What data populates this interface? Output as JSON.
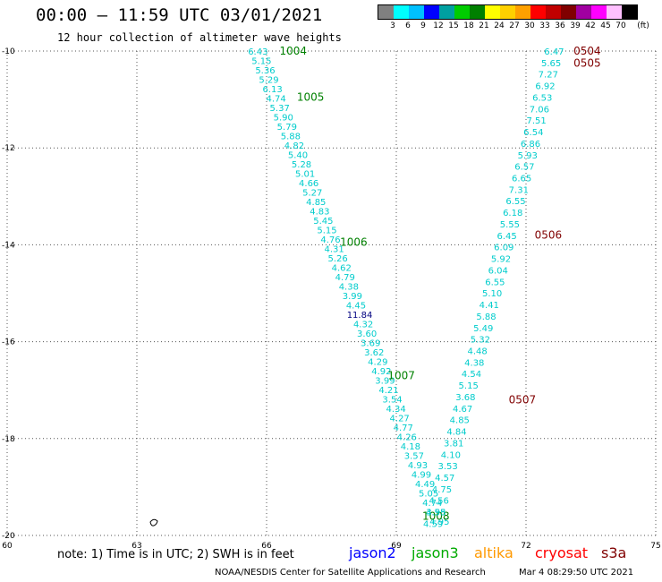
{
  "header": {
    "title": "00:00 – 11:59 UTC 03/01/2021",
    "subtitle": "12 hour collection of altimeter wave heights"
  },
  "legend": {
    "unit": "(ft)",
    "labels": [
      "3",
      "6",
      "9",
      "12",
      "15",
      "18",
      "21",
      "24",
      "27",
      "30",
      "33",
      "36",
      "39",
      "42",
      "45",
      "70"
    ],
    "colors": [
      "#808080",
      "#00ffff",
      "#00c0ff",
      "#0000ff",
      "#00a0a0",
      "#00cc00",
      "#008000",
      "#ffff00",
      "#ffd000",
      "#ffa000",
      "#ff0000",
      "#c00000",
      "#800000",
      "#a000a0",
      "#ff00ff",
      "#ffc0ff",
      "#000000"
    ]
  },
  "map": {
    "lon_range": [
      60,
      75
    ],
    "lat_range": [
      -20,
      -10
    ],
    "x_ticks": [
      "60",
      "63",
      "66",
      "69",
      "72",
      "75"
    ],
    "y_ticks": [
      "-10",
      "-12",
      "-14",
      "-16",
      "-18",
      "-20"
    ],
    "grid": "dotted"
  },
  "tracks": [
    {
      "satellite": "jason3",
      "color": "#00cccc",
      "values": [
        "6.43",
        "5.15",
        "5.36",
        "5.29",
        "6.13",
        "4.74",
        "5.37",
        "5.90",
        "5.79",
        "5.88",
        "4.82",
        "5.40",
        "5.28",
        "5.01",
        "4.66",
        "5.27",
        "4.85",
        "4.83",
        "5.45",
        "5.15",
        "4.76",
        "4.31",
        "5.26",
        "4.62",
        "4.79",
        "4.38",
        "3.99",
        "4.45",
        "11.84",
        "4.32",
        "3.60",
        "3.69",
        "3.62",
        "4.29",
        "4.92",
        "3.99",
        "4.21",
        "3.54",
        "4.34",
        "4.27",
        "4.77",
        "4.26",
        "4.18",
        "3.57",
        "4.93",
        "4.99",
        "4.49",
        "5.05",
        "4.74",
        "4.58",
        "4.95"
      ],
      "highlight": {
        "value": "11.84",
        "color": "#000080"
      },
      "start": {
        "lon": 65.8,
        "lat": -10.0
      },
      "end": {
        "lon": 70.0,
        "lat": -19.7
      },
      "time_labels": [
        {
          "text": "1004",
          "lon": 66.3,
          "lat": -10.0
        },
        {
          "text": "1005",
          "lon": 66.7,
          "lat": -10.95
        },
        {
          "text": "1006",
          "lon": 67.7,
          "lat": -13.95
        },
        {
          "text": "1007",
          "lon": 68.8,
          "lat": -16.7
        },
        {
          "text": "1008",
          "lon": 69.6,
          "lat": -19.6
        }
      ]
    },
    {
      "satellite": "s3a",
      "color": "#00cccc",
      "values": [
        "6.47",
        "5.65",
        "7.27",
        "6.92",
        "6.53",
        "7.06",
        "7.51",
        "6.54",
        "6.86",
        "5.93",
        "6.57",
        "6.65",
        "7.31",
        "6.55",
        "6.18",
        "5.55",
        "6.45",
        "6.09",
        "5.92",
        "6.04",
        "6.55",
        "5.10",
        "4.41",
        "5.88",
        "5.49",
        "5.32",
        "4.48",
        "4.38",
        "4.54",
        "5.15",
        "3.68",
        "4.67",
        "4.85",
        "4.84",
        "3.81",
        "4.10",
        "3.53",
        "4.57",
        "4.75",
        "4.56",
        "3.95",
        "4.59"
      ],
      "start": {
        "lon": 72.65,
        "lat": -10.0
      },
      "end": {
        "lon": 69.85,
        "lat": -19.75
      },
      "time_labels": [
        {
          "text": "0504",
          "lon": 73.1,
          "lat": -10.0
        },
        {
          "text": "0505",
          "lon": 73.1,
          "lat": -10.25
        },
        {
          "text": "0506",
          "lon": 72.2,
          "lat": -13.8
        },
        {
          "text": "0507",
          "lon": 71.6,
          "lat": -17.2
        }
      ]
    }
  ],
  "bottom": {
    "note": "note: 1) Time is in UTC; 2) SWH is in feet",
    "satellites": [
      {
        "name": "jason2",
        "color": "#0000ff"
      },
      {
        "name": "jason3",
        "color": "#00aa00"
      },
      {
        "name": "altika",
        "color": "#ff9900"
      },
      {
        "name": "cryosat",
        "color": "#ff0000"
      },
      {
        "name": "s3a",
        "color": "#800000"
      }
    ],
    "footer": "NOAA/NESDIS Center for Satellite Applications and Research",
    "date": "Mar  4 08:29:50 UTC 2021"
  }
}
